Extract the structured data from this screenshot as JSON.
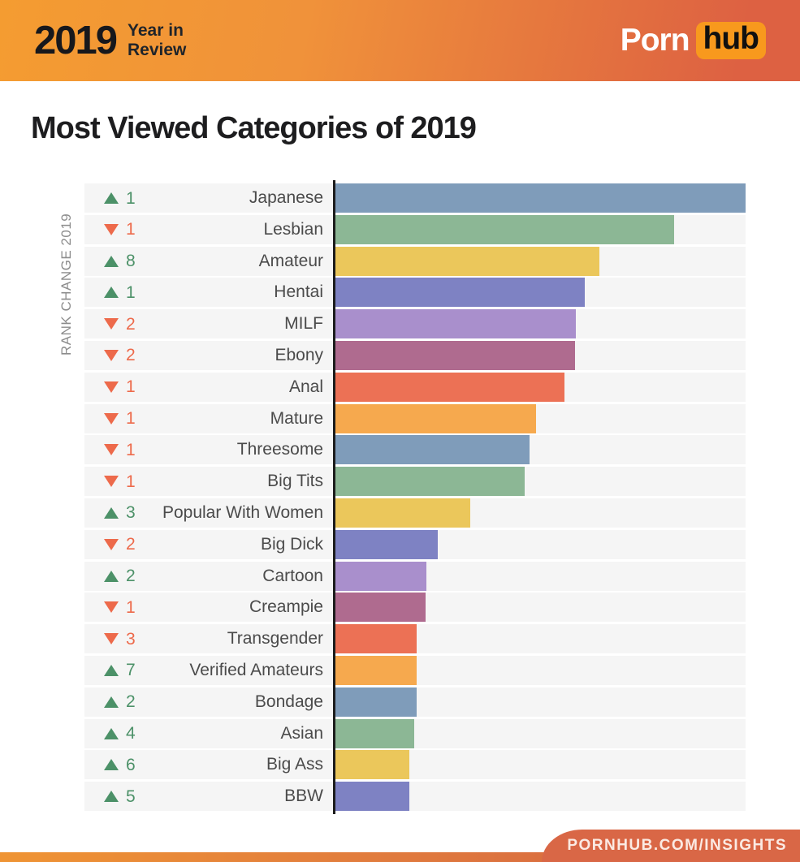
{
  "header": {
    "year": "2019",
    "subtitle_line1": "Year in",
    "subtitle_line2": "Review",
    "logo_part1": "Porn",
    "logo_part2": "hub",
    "logo_badge_color": "#f8991d",
    "gradient_left": "#f49c31",
    "gradient_right": "#dd6142"
  },
  "title": "Most Viewed Categories of 2019",
  "chart_data": {
    "type": "bar",
    "orientation": "horizontal",
    "title": "Most Viewed Categories of 2019",
    "axis_label_left": "RANK CHANGE 2019",
    "value_scale_note": "no numeric axis shown; values are bar lengths as percent of the longest bar",
    "grid": false,
    "legend": false,
    "categories": [
      "Japanese",
      "Lesbian",
      "Amateur",
      "Hentai",
      "MILF",
      "Ebony",
      "Anal",
      "Mature",
      "Threesome",
      "Big Tits",
      "Popular With Women",
      "Big Dick",
      "Cartoon",
      "Creampie",
      "Transgender",
      "Verified Amateurs",
      "Bondage",
      "Asian",
      "Big Ass",
      "BBW"
    ],
    "values": [
      100,
      82.6,
      64.4,
      60.7,
      58.7,
      58.5,
      55.9,
      49.0,
      47.4,
      46.2,
      32.8,
      24.9,
      22.1,
      21.9,
      19.8,
      19.8,
      19.8,
      19.2,
      18.0,
      18.0
    ],
    "rank_change": [
      1,
      -1,
      8,
      1,
      -2,
      -2,
      -1,
      -1,
      -1,
      -1,
      3,
      -2,
      2,
      -1,
      -3,
      7,
      2,
      4,
      6,
      5
    ],
    "bar_palette": [
      "#7f9cba",
      "#8cb795",
      "#ebc75b",
      "#7e82c3",
      "#a98fcc",
      "#af6b8f",
      "#ec7155",
      "#f6a94e"
    ],
    "palette_rule": "bars cycle through bar_palette in order, repeating every 8 rows",
    "up_color": "#4c9168",
    "down_color": "#ed6a4b",
    "row_background": "#f5f5f5",
    "axis_line_color": "#1c1c1c"
  },
  "footer": {
    "link_text": "PORNHUB.COM/INSIGHTS",
    "banner_color": "#d96746"
  }
}
